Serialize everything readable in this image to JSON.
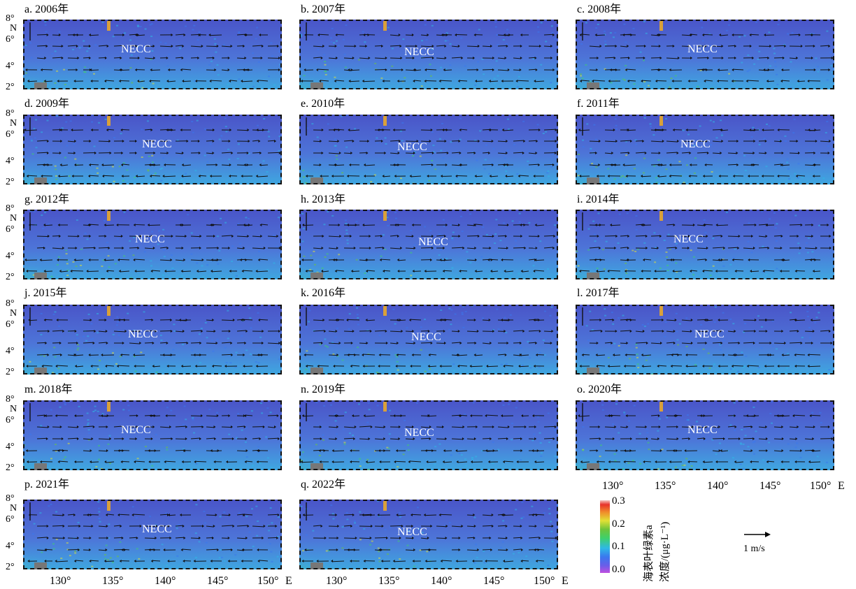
{
  "panels": [
    {
      "title": "a. 2006年",
      "label": "NECC",
      "chl": 0.55
    },
    {
      "title": "b. 2007年",
      "label": "NECC",
      "chl": 0.45
    },
    {
      "title": "c. 2008年",
      "label": "NECC",
      "chl": 0.75
    },
    {
      "title": "d. 2009年",
      "label": "NECC",
      "chl": 0.5
    },
    {
      "title": "e. 2010年",
      "label": "NECC",
      "chl": 0.55
    },
    {
      "title": "f. 2011年",
      "label": "NECC",
      "chl": 0.55
    },
    {
      "title": "g. 2012年",
      "label": "NECC",
      "chl": 0.35
    },
    {
      "title": "h. 2013年",
      "label": "NECC",
      "chl": 0.45
    },
    {
      "title": "i. 2014年",
      "label": "NECC",
      "chl": 0.6
    },
    {
      "title": "j. 2015年",
      "label": "NECC",
      "chl": 0.6
    },
    {
      "title": "k. 2016年",
      "label": "NECC",
      "chl": 0.6
    },
    {
      "title": "l. 2017年",
      "label": "NECC",
      "chl": 0.5
    },
    {
      "title": "m. 2018年",
      "label": "NECC",
      "chl": 0.7
    },
    {
      "title": "n. 2019年",
      "label": "NECC",
      "chl": 0.4
    },
    {
      "title": "o. 2020年",
      "label": "NECC",
      "chl": 0.35
    },
    {
      "title": "p. 2021年",
      "label": "NECC",
      "chl": 0.45
    },
    {
      "title": "q. 2022年",
      "label": "NECC",
      "chl": 0.45
    }
  ],
  "yaxis": {
    "ticks": [
      "8°",
      "6°",
      "4°",
      "2°"
    ],
    "unit": "N"
  },
  "xaxis": {
    "ticks": [
      "130°",
      "135°",
      "140°",
      "145°",
      "150°"
    ],
    "unit": "E"
  },
  "colorbar": {
    "ticks": [
      "0.3",
      "0.2",
      "0.1",
      "0.0"
    ],
    "title_line1": "海表叶绿素a",
    "title_line2": "浓度/(μg·L⁻¹)",
    "colors": [
      "#c04fe0",
      "#6a5ee8",
      "#3a78ee",
      "#2fb8e6",
      "#3fd06a",
      "#6fc43a",
      "#e2e035",
      "#f08a2a",
      "#e8322a",
      "#f4c6c0"
    ]
  },
  "reference_vector": {
    "label": "1 m/s"
  }
}
